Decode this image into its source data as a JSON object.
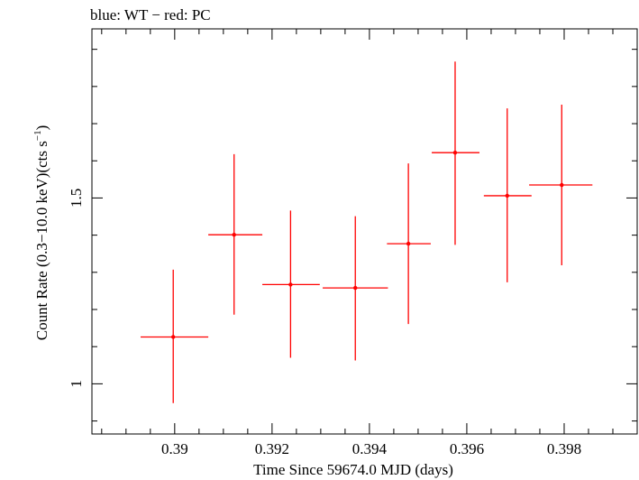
{
  "header": {
    "title_text": "blue: WT − red: PC"
  },
  "chart_data": {
    "type": "scatter",
    "title": "blue: WT − red: PC",
    "xlabel": "Time Since 59674.0 MJD (days)",
    "ylabel_main": "Count Rate (0.3−10.0 keV)(cts s",
    "ylabel_sup": "−1",
    "ylabel_close": ")",
    "xlim": [
      0.3883,
      0.3995
    ],
    "ylim": [
      0.865,
      1.955
    ],
    "x_ticks": [
      {
        "value": 0.39,
        "label": "0.39"
      },
      {
        "value": 0.392,
        "label": "0.392"
      },
      {
        "value": 0.394,
        "label": "0.394"
      },
      {
        "value": 0.396,
        "label": "0.396"
      },
      {
        "value": 0.398,
        "label": "0.398"
      }
    ],
    "x_minor_step": 0.0005,
    "y_ticks": [
      {
        "value": 1.0,
        "label": "1"
      },
      {
        "value": 1.5,
        "label": "1.5"
      }
    ],
    "y_minor_step": 0.1,
    "grid": false,
    "series": [
      {
        "color": "#ff0000",
        "points": [
          {
            "x": 0.38997,
            "y": 1.126,
            "xerr_lo": 0.00067,
            "xerr_hi": 0.00072,
            "yerr_lo": 0.178,
            "yerr_hi": 0.181
          },
          {
            "x": 0.39122,
            "y": 1.401,
            "xerr_lo": 0.00053,
            "xerr_hi": 0.00058,
            "yerr_lo": 0.215,
            "yerr_hi": 0.217
          },
          {
            "x": 0.39238,
            "y": 1.267,
            "xerr_lo": 0.00058,
            "xerr_hi": 0.0006,
            "yerr_lo": 0.197,
            "yerr_hi": 0.199
          },
          {
            "x": 0.39371,
            "y": 1.258,
            "xerr_lo": 0.00067,
            "xerr_hi": 0.00067,
            "yerr_lo": 0.195,
            "yerr_hi": 0.193
          },
          {
            "x": 0.3948,
            "y": 1.377,
            "xerr_lo": 0.00044,
            "xerr_hi": 0.00046,
            "yerr_lo": 0.216,
            "yerr_hi": 0.216
          },
          {
            "x": 0.39576,
            "y": 1.622,
            "xerr_lo": 0.00048,
            "xerr_hi": 0.0005,
            "yerr_lo": 0.248,
            "yerr_hi": 0.245
          },
          {
            "x": 0.39683,
            "y": 1.506,
            "xerr_lo": 0.00048,
            "xerr_hi": 0.0005,
            "yerr_lo": 0.233,
            "yerr_hi": 0.235
          },
          {
            "x": 0.39795,
            "y": 1.535,
            "xerr_lo": 0.00067,
            "xerr_hi": 0.00063,
            "yerr_lo": 0.216,
            "yerr_hi": 0.216
          }
        ]
      }
    ]
  }
}
